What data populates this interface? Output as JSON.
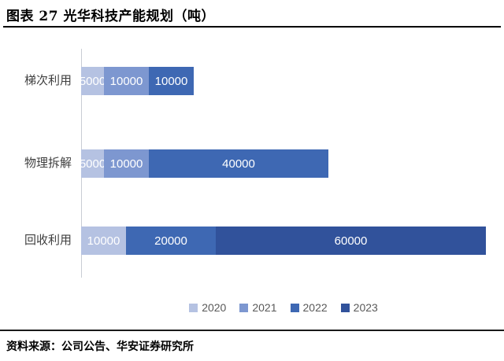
{
  "header": {
    "title": "图表 27 光华科技产能规划（吨）"
  },
  "footer": {
    "source": "资料来源：公司公告、华安证券研究所"
  },
  "chart_data": {
    "type": "bar",
    "orientation": "horizontal",
    "stacked": true,
    "title": "图表 27 光华科技产能规划（吨）",
    "unit": "吨",
    "categories": [
      "梯次利用",
      "物理拆解",
      "回收利用"
    ],
    "series": [
      {
        "name": "2020",
        "color": "#b5c2e2",
        "values": [
          5000,
          5000,
          10000
        ]
      },
      {
        "name": "2021",
        "color": "#7d97d0",
        "values": [
          10000,
          10000,
          0
        ]
      },
      {
        "name": "2022",
        "color": "#3e68b3",
        "values": [
          10000,
          40000,
          20000
        ]
      },
      {
        "name": "2023",
        "color": "#31529b",
        "values": [
          0,
          0,
          60000
        ]
      }
    ],
    "row_totals": [
      25000,
      55000,
      90000
    ],
    "xlim": [
      0,
      90000
    ],
    "grid": false,
    "value_labels": true,
    "legend_position": "bottom",
    "axis_color": "#c9cdd4",
    "category_label_color": "#3f3f3f",
    "legend_text_color": "#595959",
    "value_label_color": "#ffffff"
  }
}
